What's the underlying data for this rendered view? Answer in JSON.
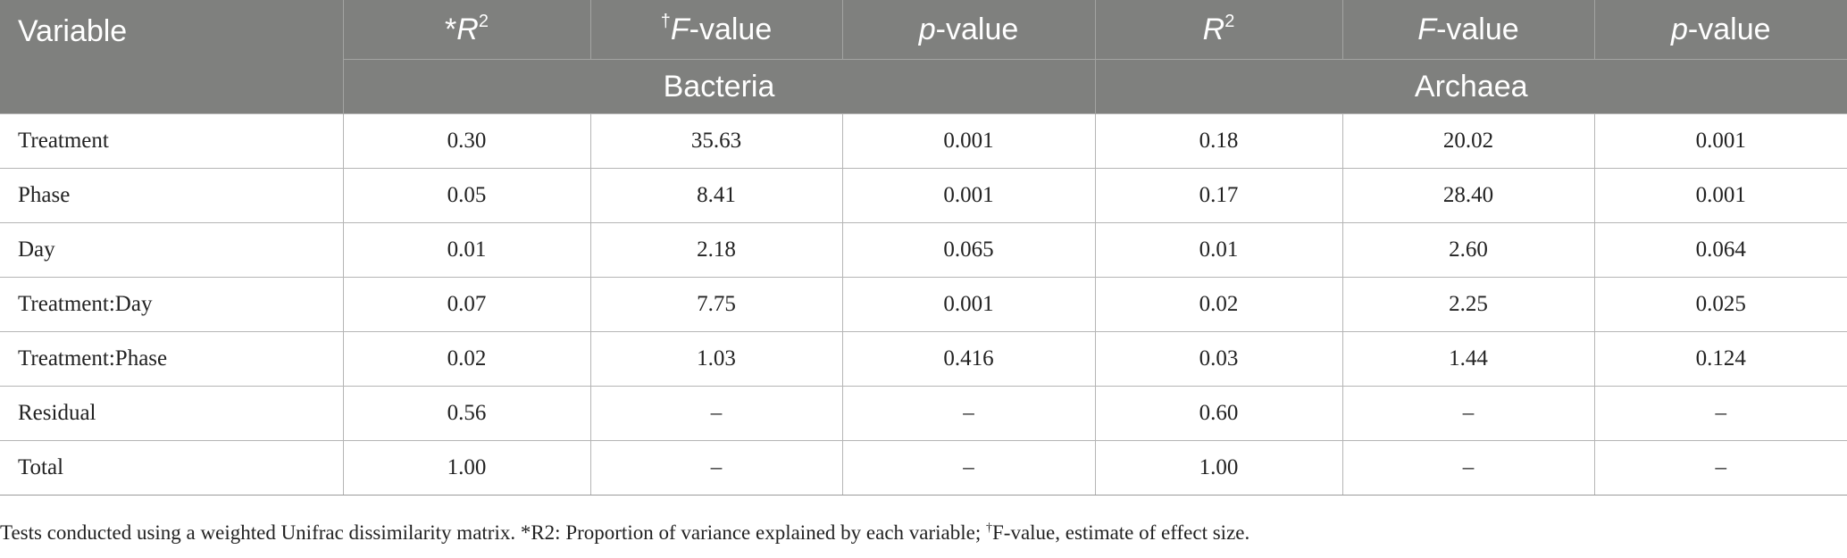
{
  "table": {
    "headers": {
      "variable": "Variable",
      "r2_prefix": "*",
      "r2_label": "R",
      "r2_sup": "2",
      "f_prefix": "†",
      "f_italic": "F",
      "f_suffix": "-value",
      "p_italic": "p",
      "p_suffix": "-value",
      "r2b_label": "R",
      "r2b_sup": "2",
      "fb_italic": "F",
      "fb_suffix": "-value",
      "pb_italic": "p",
      "pb_suffix": "-value"
    },
    "groups": {
      "bacteria": "Bacteria",
      "archaea": "Archaea"
    },
    "rows": [
      {
        "variable": "Treatment",
        "bac_r2": "0.30",
        "bac_f": "35.63",
        "bac_p": "0.001",
        "arc_r2": "0.18",
        "arc_f": "20.02",
        "arc_p": "0.001"
      },
      {
        "variable": "Phase",
        "bac_r2": "0.05",
        "bac_f": "8.41",
        "bac_p": "0.001",
        "arc_r2": "0.17",
        "arc_f": "28.40",
        "arc_p": "0.001"
      },
      {
        "variable": "Day",
        "bac_r2": "0.01",
        "bac_f": "2.18",
        "bac_p": "0.065",
        "arc_r2": "0.01",
        "arc_f": "2.60",
        "arc_p": "0.064"
      },
      {
        "variable": "Treatment:Day",
        "bac_r2": "0.07",
        "bac_f": "7.75",
        "bac_p": "0.001",
        "arc_r2": "0.02",
        "arc_f": "2.25",
        "arc_p": "0.025"
      },
      {
        "variable": "Treatment:Phase",
        "bac_r2": "0.02",
        "bac_f": "1.03",
        "bac_p": "0.416",
        "arc_r2": "0.03",
        "arc_f": "1.44",
        "arc_p": "0.124"
      },
      {
        "variable": "Residual",
        "bac_r2": "0.56",
        "bac_f": "–",
        "bac_p": "–",
        "arc_r2": "0.60",
        "arc_f": "–",
        "arc_p": "–"
      },
      {
        "variable": "Total",
        "bac_r2": "1.00",
        "bac_f": "–",
        "bac_p": "–",
        "arc_r2": "1.00",
        "arc_f": "–",
        "arc_p": "–"
      }
    ]
  },
  "footnote": {
    "part1": "Tests conducted using a weighted Unifrac dissimilarity matrix. *R2: Proportion of variance explained by each variable; ",
    "dagger": "†",
    "part2": "F-value, estimate of effect size."
  },
  "colors": {
    "header_bg": "#7f807e",
    "header_text": "#ffffff",
    "body_text": "#222222",
    "grid": "#b5b5b5"
  }
}
